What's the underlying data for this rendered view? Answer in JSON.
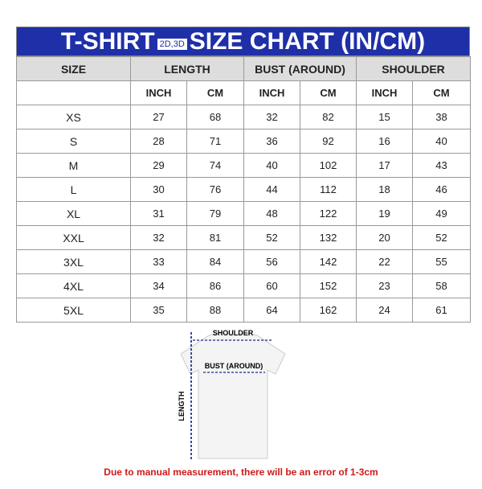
{
  "title": {
    "left": "T-SHIRT",
    "tag": "2D,3D",
    "right": "SIZE CHART (IN/CM)"
  },
  "colors": {
    "header_bg": "#1f2fa8",
    "note": "#d01818"
  },
  "headers": [
    "SIZE",
    "LENGTH",
    "BUST (AROUND)",
    "SHOULDER"
  ],
  "subheaders": [
    "INCH",
    "CM",
    "INCH",
    "CM",
    "INCH",
    "CM"
  ],
  "rows": [
    [
      "XS",
      "27",
      "68",
      "32",
      "82",
      "15",
      "38"
    ],
    [
      "S",
      "28",
      "71",
      "36",
      "92",
      "16",
      "40"
    ],
    [
      "M",
      "29",
      "74",
      "40",
      "102",
      "17",
      "43"
    ],
    [
      "L",
      "30",
      "76",
      "44",
      "112",
      "18",
      "46"
    ],
    [
      "XL",
      "31",
      "79",
      "48",
      "122",
      "19",
      "49"
    ],
    [
      "XXL",
      "32",
      "81",
      "52",
      "132",
      "20",
      "52"
    ],
    [
      "3XL",
      "33",
      "84",
      "56",
      "142",
      "22",
      "55"
    ],
    [
      "4XL",
      "34",
      "86",
      "60",
      "152",
      "23",
      "58"
    ],
    [
      "5XL",
      "35",
      "88",
      "64",
      "162",
      "24",
      "61"
    ]
  ],
  "diagram": {
    "shoulder": "SHOULDER",
    "bust": "BUST (AROUND)",
    "length": "LENGTH"
  },
  "note": "Due to manual measurement, there will be an error of 1-3cm"
}
